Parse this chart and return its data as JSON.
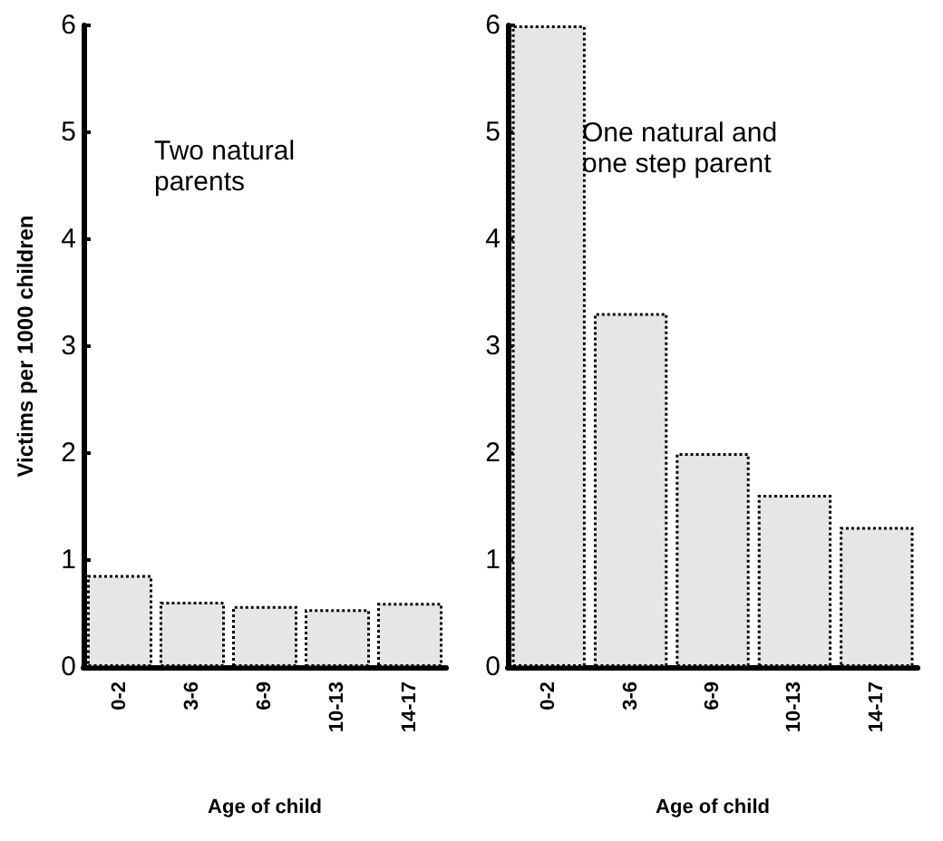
{
  "chart_data": [
    {
      "type": "bar",
      "title": "Two natural\nparents",
      "xlabel": "Age of child",
      "ylabel": "Victims per 1000 children",
      "categories": [
        "0-2",
        "3-6",
        "6-9",
        "10-13",
        "14-17"
      ],
      "values": [
        0.86,
        0.61,
        0.57,
        0.54,
        0.6
      ],
      "color": "#e6e6e6",
      "ylim": [
        0,
        6
      ],
      "yticks": [
        0,
        1,
        2,
        3,
        4,
        5,
        6
      ],
      "grid": false
    },
    {
      "type": "bar",
      "title": "One natural and\none step parent",
      "xlabel": "Age of child",
      "categories": [
        "0-2",
        "3-6",
        "6-9",
        "10-13",
        "14-17"
      ],
      "values": [
        6.0,
        3.31,
        2.0,
        1.61,
        1.31
      ],
      "color": "#e6e6e6",
      "ylim": [
        0,
        6
      ],
      "yticks": [
        0,
        1,
        2,
        3,
        4,
        5,
        6
      ],
      "grid": false
    }
  ]
}
